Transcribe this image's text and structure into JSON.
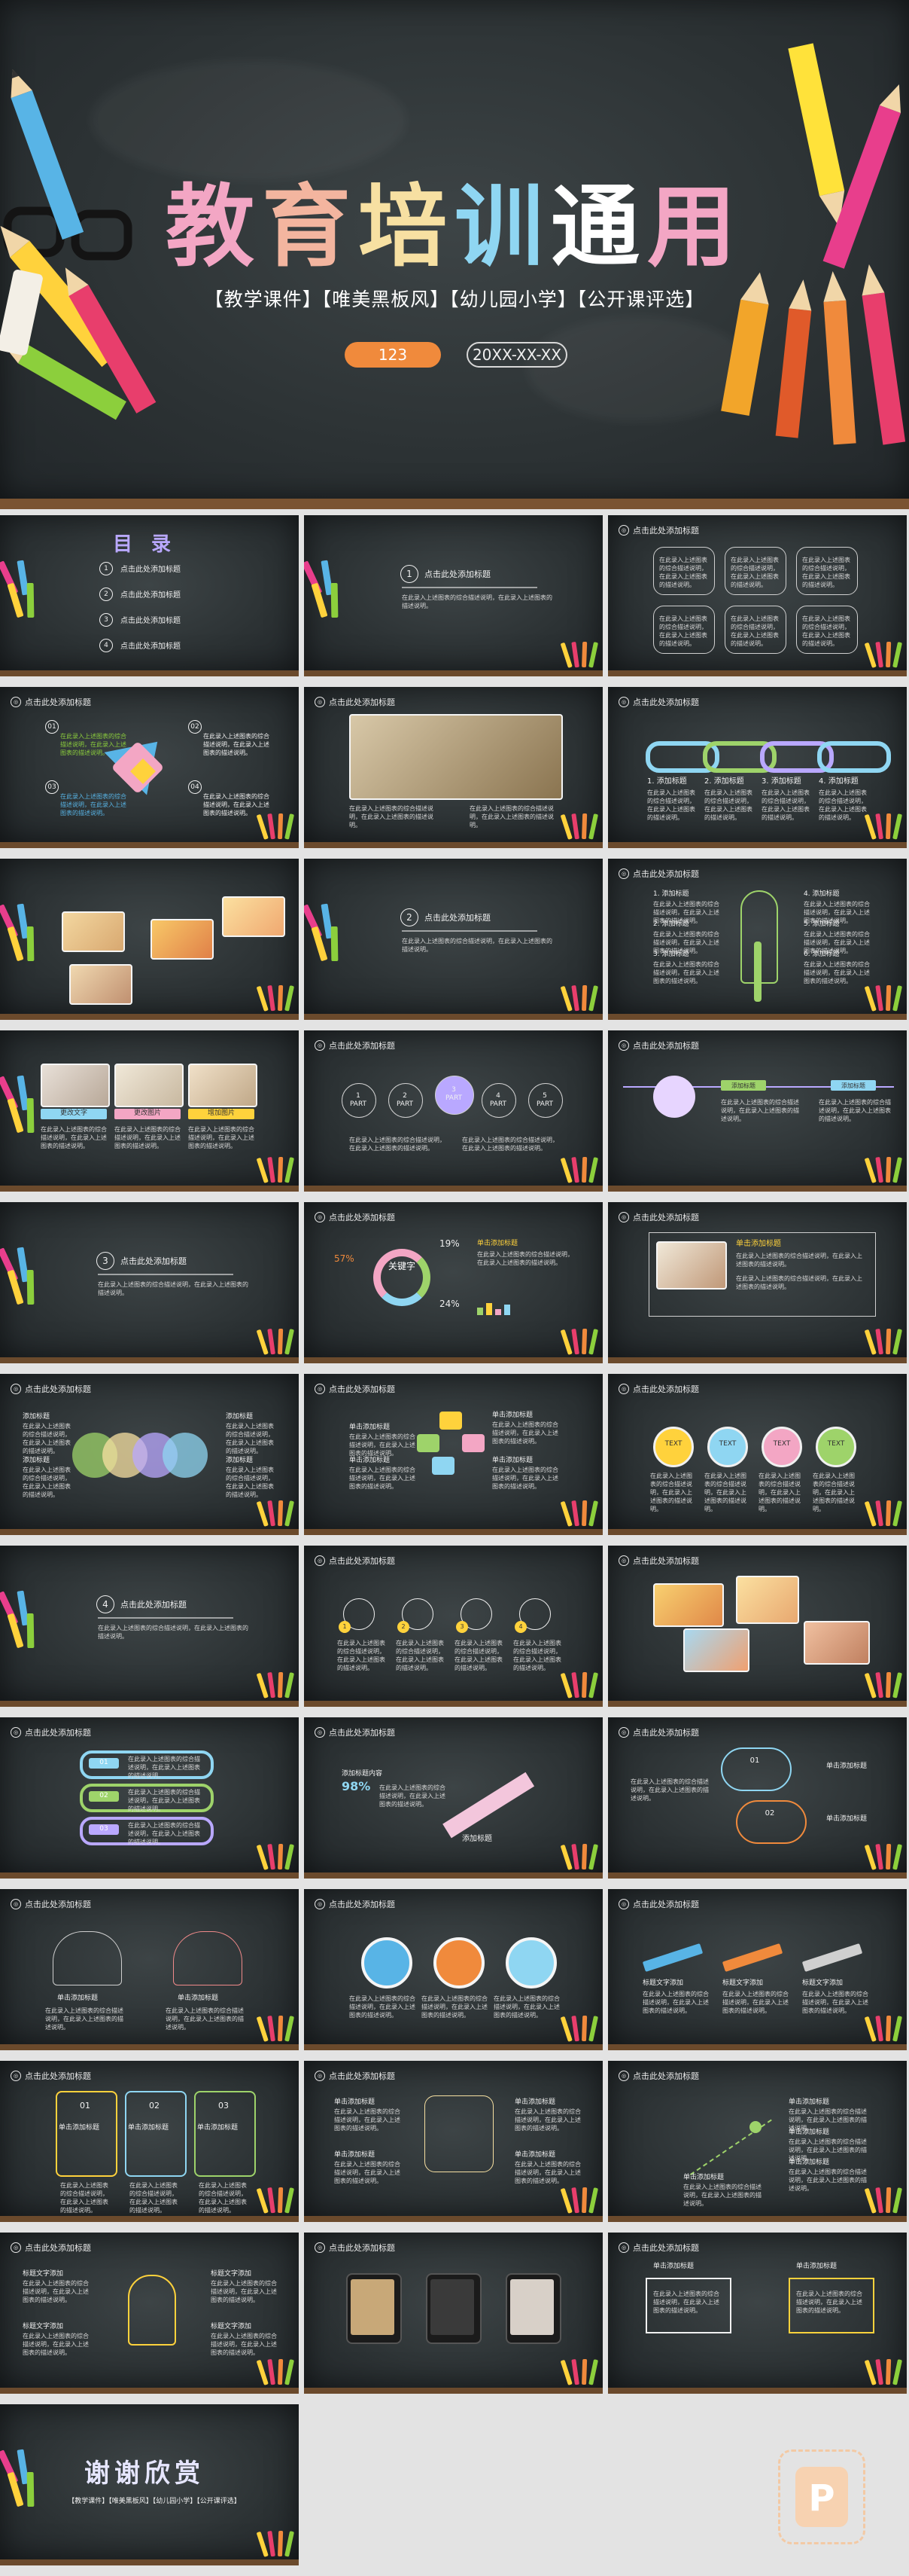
{
  "cover": {
    "title_chars": [
      {
        "ch": "教",
        "color": "#f3a6c4"
      },
      {
        "ch": "育",
        "color": "#f3b59f"
      },
      {
        "ch": "培",
        "color": "#f7e0a2"
      },
      {
        "ch": "训",
        "color": "#8fd6f2"
      },
      {
        "ch": "通",
        "color": "#ffffff"
      },
      {
        "ch": "用",
        "color": "#f3a6c4"
      }
    ],
    "tags": "【教学课件】【唯美黑板风】【幼儿园小学】【公开课评选】",
    "number": "123",
    "date": "20XX-XX-XX"
  },
  "common": {
    "header": "点击此处添加标题",
    "sub_text": "在此录入上述图表的综合描述说明，在此录入上述图表的描述说明。",
    "add_title": "添加标题",
    "single_add_title": "单击添加标题",
    "title_text_add": "标题文字添加"
  },
  "toc": {
    "title": "目 录",
    "items": [
      "点击此处添加标题",
      "点击此处添加标题",
      "点击此处添加标题",
      "点击此处添加标题"
    ]
  },
  "section_slides": [
    {
      "num": "1",
      "title": "点击此处添加标题"
    },
    {
      "num": "2",
      "title": "点击此处添加标题"
    },
    {
      "num": "3",
      "title": "点击此处添加标题"
    },
    {
      "num": "4",
      "title": "点击此处添加标题"
    }
  ],
  "parts": [
    "1\nPART",
    "2\nPART",
    "3\nPART",
    "4\nPART",
    "5\nPART"
  ],
  "image_buttons": [
    "更改文字",
    "更改图片",
    "增加图片"
  ],
  "keyword": {
    "label": "关键字",
    "sub": "添加",
    "pct1": "57%",
    "pct2": "19%",
    "pct3": "24%"
  },
  "text_bubbles": [
    "TEXT",
    "TEXT",
    "TEXT",
    "TEXT"
  ],
  "stat": {
    "pct": "98%",
    "label": "添加标题内容"
  },
  "cloud_nums": [
    "01",
    "02"
  ],
  "list_nums": [
    "01",
    "02",
    "03"
  ],
  "thanks": {
    "title": "谢谢欣赏",
    "tags": "【教学课件】【唯美黑板风】【幼儿园小学】【公开课评选】"
  },
  "colors": {
    "board": "#2f3538",
    "frame": "#7a5331",
    "orange": "#f08a3c",
    "pink": "#f3a6c4",
    "blue": "#8fd6f2",
    "yellow": "#f7e0a2",
    "green": "#9ed36a",
    "purple": "#b9a8ff"
  },
  "icons": [
    "pencil-icon",
    "glasses-icon",
    "book-icon",
    "chain-icon",
    "tree-icon",
    "arrow-icon",
    "cloud-icon",
    "light-bulb-icon",
    "chart-icon",
    "easel-icon"
  ]
}
